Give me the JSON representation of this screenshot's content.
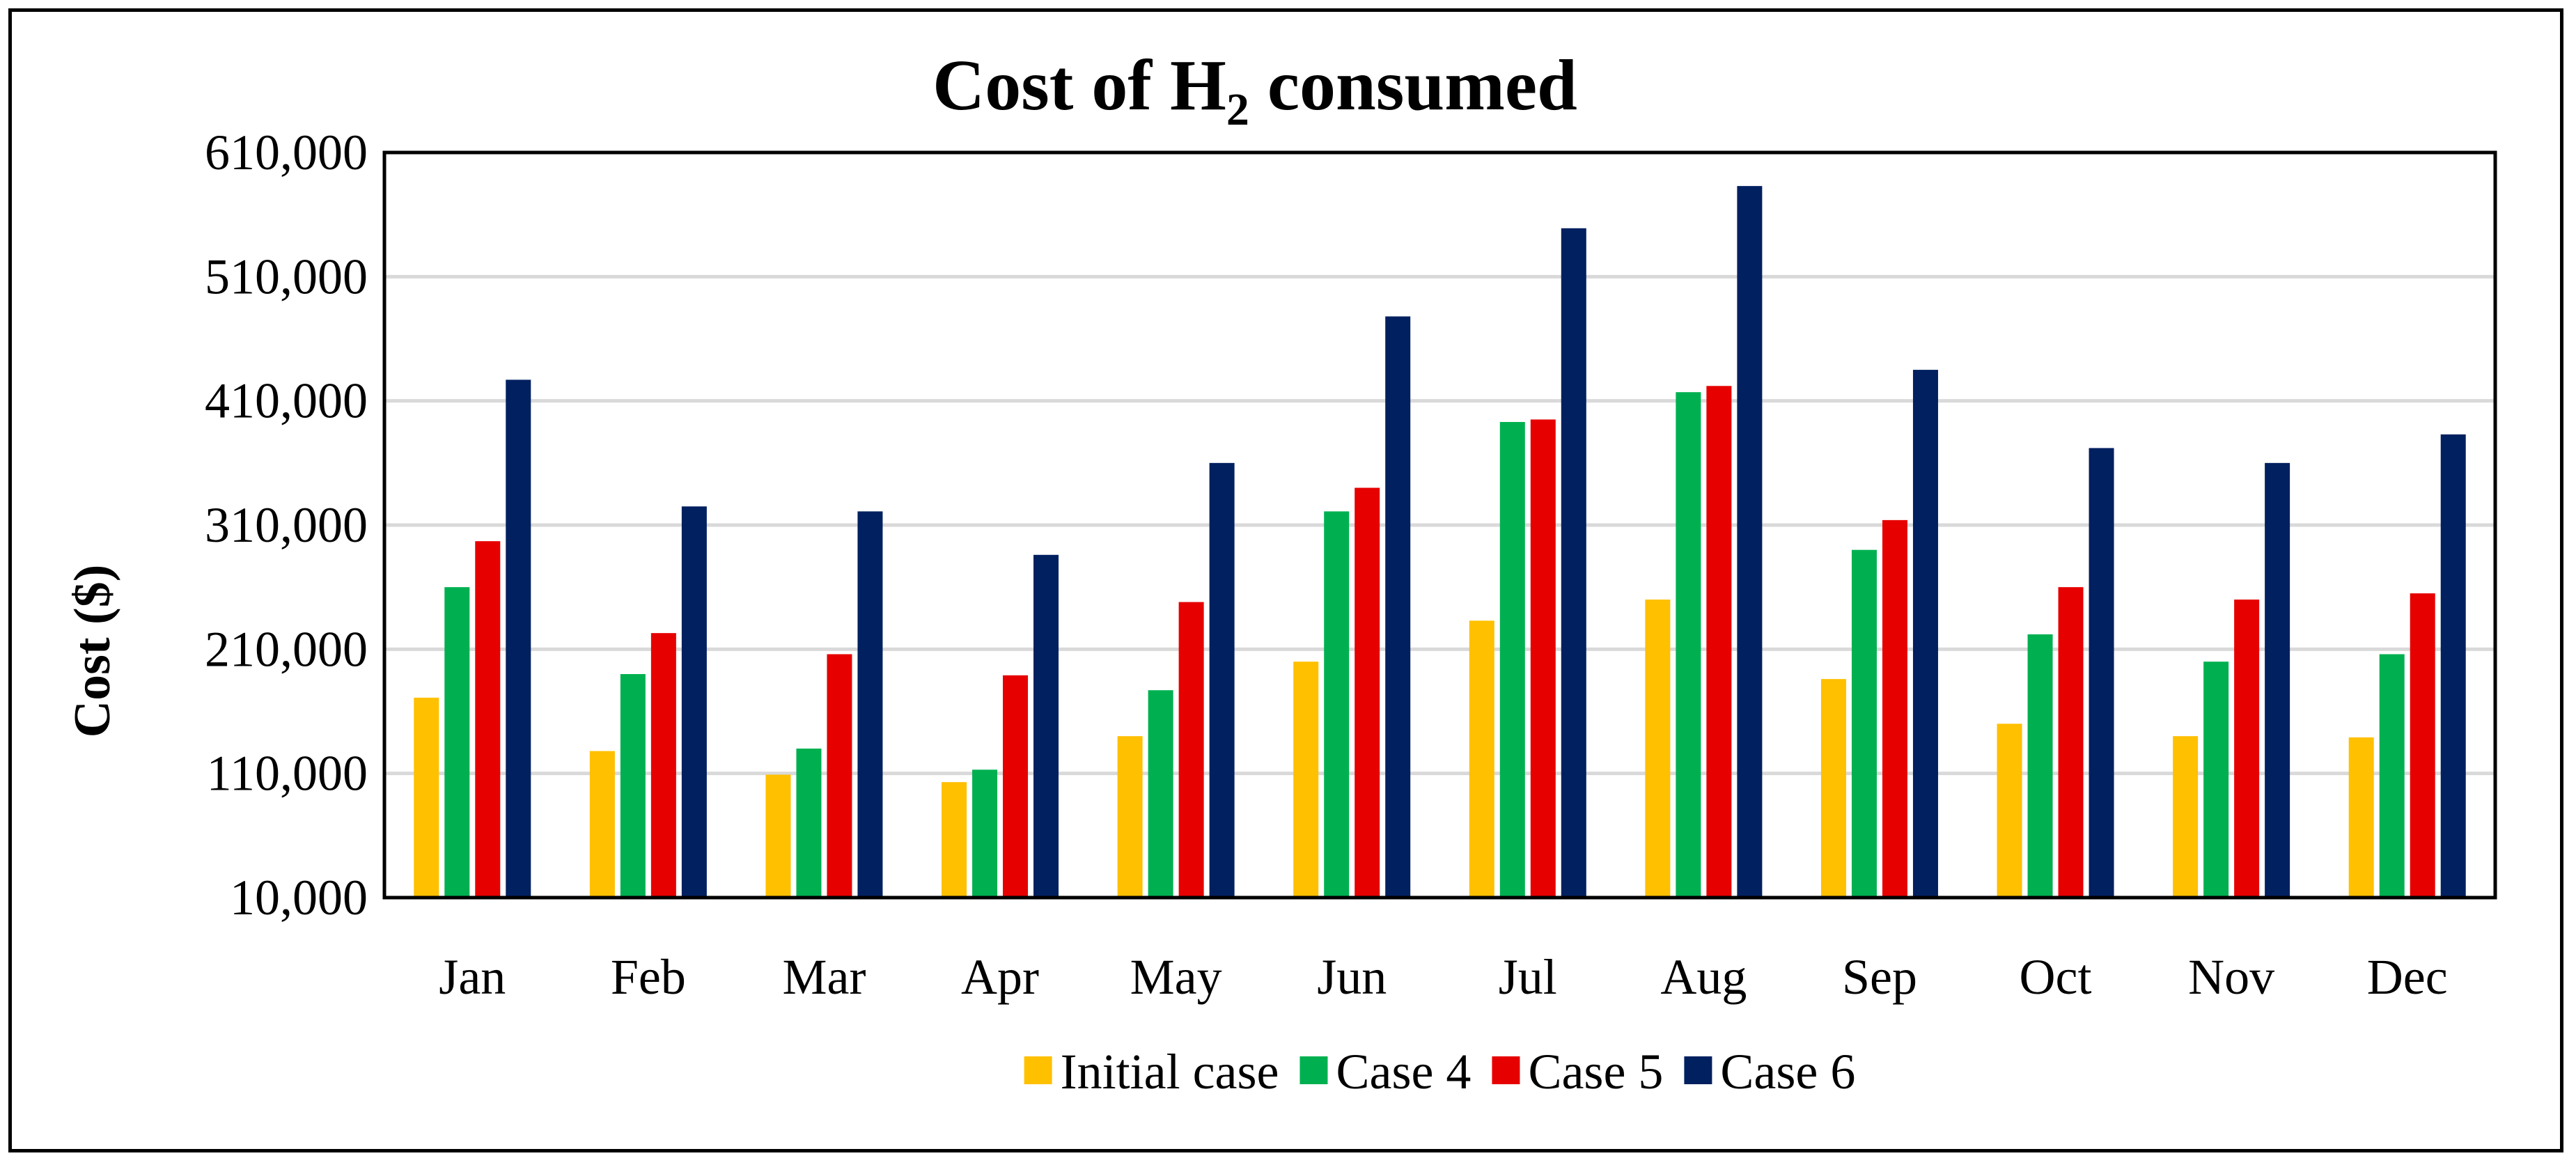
{
  "chart_data": {
    "type": "bar",
    "title_main": "Cost of H",
    "title_sub": "2",
    "title_rest": " consumed",
    "xlabel": "",
    "ylabel": "Cost ($)",
    "ylim": [
      10000,
      610000
    ],
    "yticks": [
      10000,
      110000,
      210000,
      310000,
      410000,
      510000,
      610000
    ],
    "ytick_labels": [
      "10,000",
      "110,000",
      "210,000",
      "310,000",
      "410,000",
      "510,000",
      "610,000"
    ],
    "grid": true,
    "legend_position": "bottom",
    "categories": [
      "Jan",
      "Feb",
      "Mar",
      "Apr",
      "May",
      "Jun",
      "Jul",
      "Aug",
      "Sep",
      "Oct",
      "Nov",
      "Dec"
    ],
    "series": [
      {
        "name": "Initial case",
        "color": "#FFC000",
        "values": [
          171000,
          128000,
          109000,
          103000,
          140000,
          200000,
          233000,
          250000,
          186000,
          150000,
          140000,
          139000
        ]
      },
      {
        "name": "Case 4",
        "color": "#00B050",
        "values": [
          260000,
          190000,
          130000,
          113000,
          177000,
          321000,
          393000,
          417000,
          290000,
          222000,
          200000,
          206000
        ]
      },
      {
        "name": "Case 5",
        "color": "#E60000",
        "values": [
          297000,
          223000,
          206000,
          189000,
          248000,
          340000,
          395000,
          422000,
          314000,
          260000,
          250000,
          255000
        ]
      },
      {
        "name": "Case 6",
        "color": "#002060",
        "values": [
          427000,
          325000,
          321000,
          286000,
          360000,
          478000,
          549000,
          583000,
          435000,
          372000,
          360000,
          383000
        ]
      }
    ]
  }
}
